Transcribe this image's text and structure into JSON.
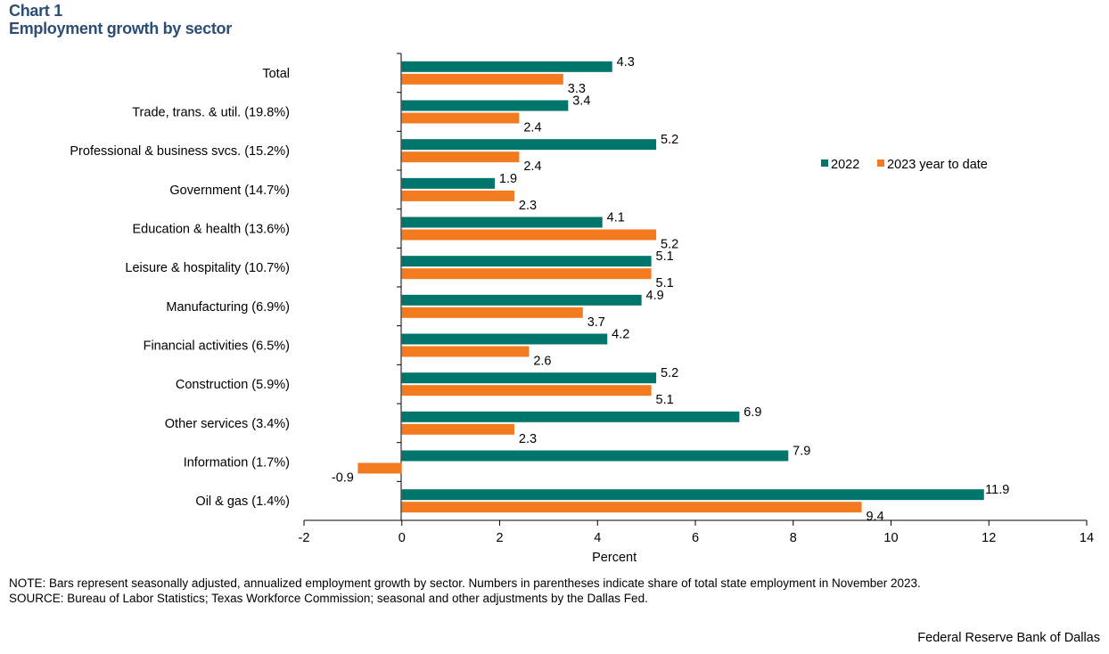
{
  "header": {
    "chart_number": "Chart 1",
    "title": "Employment growth by sector"
  },
  "chart_data": {
    "type": "bar",
    "orientation": "horizontal",
    "title": "Employment growth by sector",
    "xlabel": "Percent",
    "ylabel": "",
    "xlim": [
      -2,
      14
    ],
    "xticks": [
      -2,
      0,
      2,
      4,
      6,
      8,
      10,
      12,
      14
    ],
    "grid": false,
    "legend_position": "right",
    "categories": [
      "Total",
      "Trade, trans. & util. (19.8%)",
      "Professional & business svcs. (15.2%)",
      "Government (14.7%)",
      "Education & health (13.6%)",
      "Leisure & hospitality (10.7%)",
      "Manufacturing (6.9%)",
      "Financial activities (6.5%)",
      "Construction (5.9%)",
      "Other services (3.4%)",
      "Information (1.7%)",
      "Oil & gas (1.4%)"
    ],
    "series": [
      {
        "name": "2022",
        "color": "#00756b",
        "values": [
          4.3,
          3.4,
          5.2,
          1.9,
          4.1,
          5.1,
          4.9,
          4.2,
          5.2,
          6.9,
          7.9,
          11.9
        ],
        "labels": [
          "4.3",
          "3.4",
          "5.2",
          "1.9",
          "4.1",
          "5.1",
          "4.9",
          "4.2",
          "5.2",
          "6.9",
          "7.9",
          "11.9"
        ]
      },
      {
        "name": "2023 year to date",
        "color": "#f47a20",
        "values": [
          3.3,
          2.4,
          2.4,
          2.3,
          5.2,
          5.1,
          3.7,
          2.6,
          5.1,
          2.3,
          -0.9,
          9.4
        ],
        "labels": [
          "3.3",
          "2.4",
          "2.4",
          "2.3",
          "5.2",
          "5.1",
          "3.7",
          "2.6",
          "5.1",
          "2.3",
          "-0.9",
          "9.4"
        ]
      }
    ]
  },
  "footer": {
    "note": "NOTE: Bars represent seasonally adjusted, annualized employment growth by sector. Numbers in parentheses indicate share of total state employment in November 2023.",
    "source": "SOURCE: Bureau of Labor Statistics; Texas Workforce Commission; seasonal and other adjustments by the Dallas Fed.",
    "credit": "Federal Reserve Bank of Dallas"
  }
}
